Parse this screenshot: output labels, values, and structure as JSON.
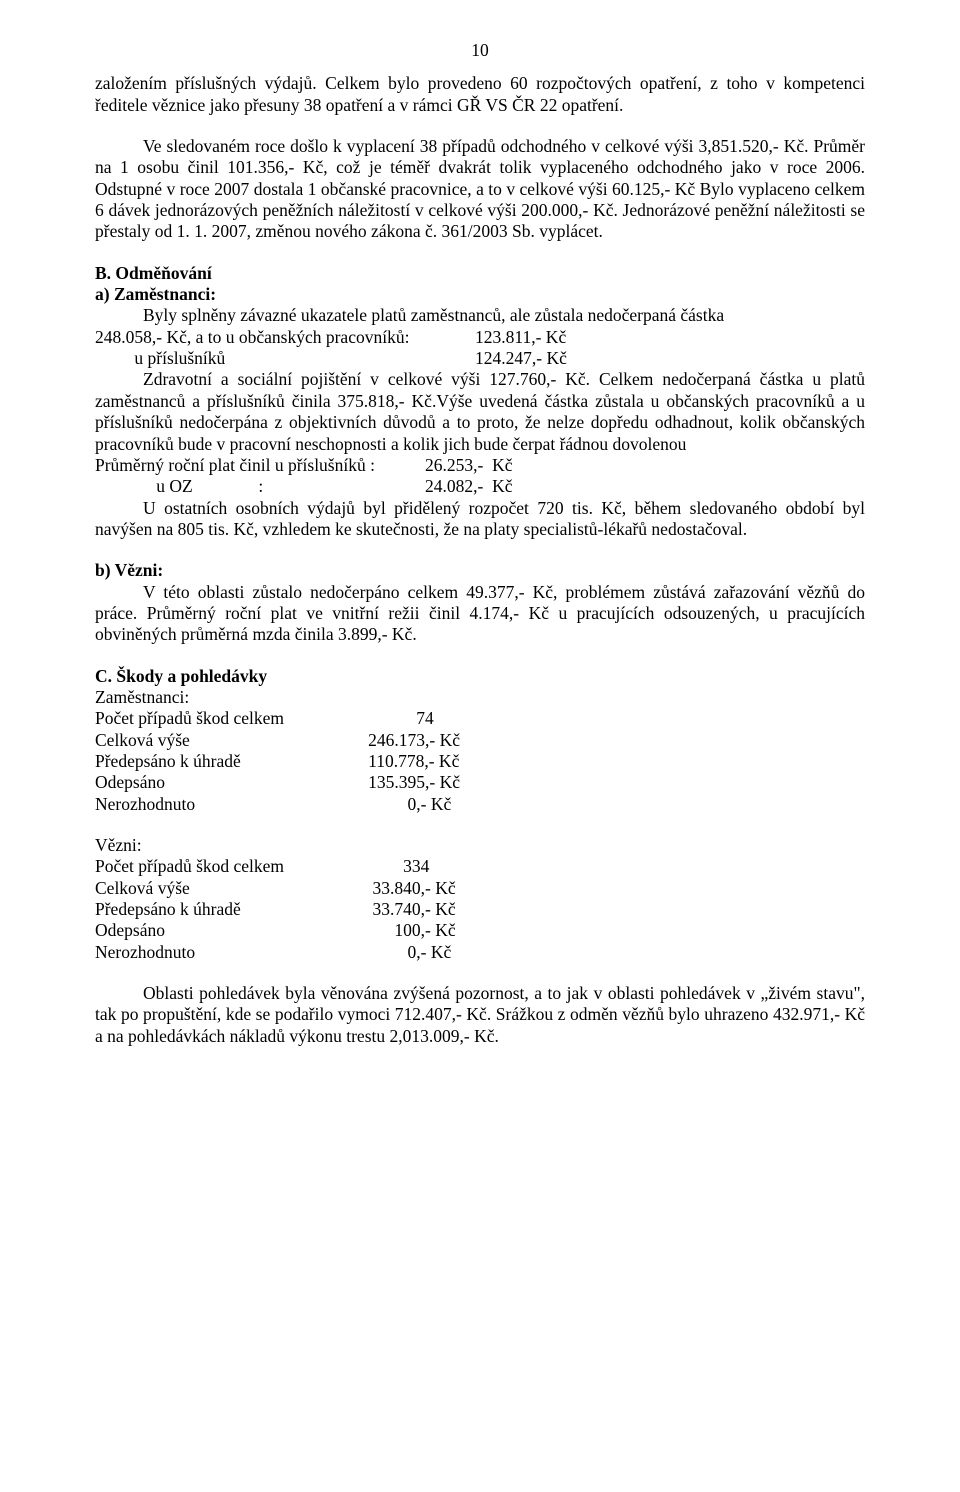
{
  "page_number": "10",
  "p1": "založením příslušných výdajů. Celkem bylo provedeno 60 rozpočtových opatření, z toho v kompetenci ředitele věznice jako přesuny 38 opatření a v rámci GŘ VS ČR 22 opatření.",
  "p2": "Ve sledovaném roce došlo k vyplacení 38 případů odchodného v celkové výši 3,851.520,- Kč. Průměr na 1 osobu činil 101.356,- Kč, což je téměř dvakrát tolik vyplaceného odchodného jako v roce 2006. Odstupné v roce 2007 dostala 1 občanské pracovnice, a to v celkové výši 60.125,- Kč Bylo vyplaceno celkem 6 dávek jednorázových peněžních náležitostí v celkové výši 200.000,- Kč. Jednorázové peněžní náležitosti se přestaly od 1. 1. 2007, změnou nového zákona č. 361/2003 Sb. vyplácet.",
  "section_b_title": "B. Odměňování",
  "a_zam_title": "a) Zaměstnanci:",
  "a_zam_line1": "Byly splněny závazné ukazatele platů zaměstnanců, ale zůstala nedočerpaná částka",
  "a_zam_row1_label": "248.058,- Kč, a to u občanských pracovníků:",
  "a_zam_row1_value": "123.811,- Kč",
  "a_zam_row2_label": "         u příslušníků",
  "a_zam_row2_value": "124.247,- Kč",
  "a_zam_p2": "Zdravotní a sociální pojištění v celkové výši 127.760,- Kč. Celkem nedočerpaná částka u platů zaměstnanců a příslušníků činila 375.818,- Kč.Výše uvedená částka zůstala u občanských pracovníků a u příslušníků nedočerpána z objektivních důvodů a to proto, že nelze dopředu odhadnout, kolik občanských pracovníků bude v pracovní neschopnosti a kolik jich bude čerpat řádnou dovolenou",
  "a_zam_row3_label": "Průměrný roční plat činil u příslušníků :",
  "a_zam_row3_value": "26.253,-  Kč",
  "a_zam_row4_label": "              u OZ               :",
  "a_zam_row4_value": "24.082,-  Kč",
  "a_zam_p3": "U ostatních osobních výdajů byl přidělený rozpočet 720 tis. Kč, během sledovaného období byl navýšen na 805 tis. Kč, vzhledem ke skutečnosti, že na platy specialistů-lékařů nedostačoval.",
  "b_vez_title": "b) Vězni:",
  "b_vez_p": "V této oblasti zůstalo nedočerpáno celkem 49.377,- Kč, problémem zůstává zařazování vězňů do práce. Průměrný roční plat ve vnitřní režii činil 4.174,- Kč u pracujících odsouzených, u pracujících obviněných průměrná mzda činila 3.899,- Kč.",
  "section_c_title": "C. Škody a pohledávky",
  "zam_label": "Zaměstnanci:",
  "vez_label": "Vězni:",
  "rows_zam": [
    {
      "label": "Počet případů škod celkem",
      "value": "              74"
    },
    {
      "label": "Celková výše",
      "value": "   246.173,- Kč"
    },
    {
      "label": "Předepsáno k úhradě",
      "value": "   110.778,- Kč"
    },
    {
      "label": "Odepsáno",
      "value": "   135.395,- Kč"
    },
    {
      "label": "Nerozhodnuto",
      "value": "            0,- Kč"
    }
  ],
  "rows_vez": [
    {
      "label": "Počet případů škod celkem",
      "value": "           334"
    },
    {
      "label": "Celková výše",
      "value": "    33.840,- Kč"
    },
    {
      "label": "Předepsáno k úhradě",
      "value": "    33.740,- Kč"
    },
    {
      "label": "Odepsáno",
      "value": "         100,- Kč"
    },
    {
      "label": "Nerozhodnuto",
      "value": "            0,- Kč"
    }
  ],
  "last_p": "Oblasti pohledávek byla věnována zvýšená pozornost, a to jak v oblasti pohledávek v „živém stavu\", tak po propuštění, kde se podařilo vymoci 712.407,- Kč. Srážkou z odměn vězňů bylo uhrazeno 432.971,- Kč a na pohledávkách nákladů výkonu trestu 2,013.009,- Kč."
}
